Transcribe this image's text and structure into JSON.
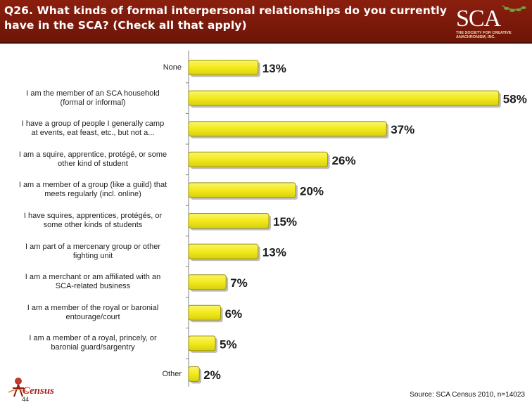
{
  "header": {
    "question_line1": "Q26. What kinds of formal interpersonal relationships do you currently",
    "question_line2": "have in the SCA? (Check all that apply)",
    "logo_text": "SCA",
    "logo_sub1": "THE SOCIETY FOR CREATIVE",
    "logo_sub2": "ANACHRONISM, INC."
  },
  "footer": {
    "page_number": "44",
    "source": "Source: SCA Census 2010, n=14023",
    "census_logo_text": "Census"
  },
  "colors": {
    "header_bg": "#7a1a0b",
    "bar_fill": "#f2ea1c",
    "bar_stroke": "#9c9310",
    "axis": "#808080"
  },
  "chart_data": {
    "type": "bar",
    "orientation": "horizontal",
    "title": "Q26. What kinds of formal interpersonal relationships do you currently have in the SCA? (Check all that apply)",
    "categories": [
      [
        "None"
      ],
      [
        "I am the member of an SCA household",
        "(formal or informal)"
      ],
      [
        "I have a group of people I generally camp",
        "at events, eat feast, etc., but not a..."
      ],
      [
        "I am a squire, apprentice, protégé, or some",
        "other kind of student"
      ],
      [
        "I am a member of a group (like a guild) that",
        "meets regularly (incl. online)"
      ],
      [
        "I have squires, apprentices, protégés, or",
        "some other kinds of students"
      ],
      [
        "I am part of a mercenary group or other",
        "fighting unit"
      ],
      [
        "I am a merchant or am affiliated with an",
        "SCA-related business"
      ],
      [
        "I am a member of the royal or baronial",
        "entourage/court"
      ],
      [
        "I am a member of a royal, princely, or",
        "baronial guard/sargentry"
      ],
      [
        "Other"
      ]
    ],
    "values": [
      13,
      58,
      37,
      26,
      20,
      15,
      13,
      7,
      6,
      5,
      2
    ],
    "value_labels": [
      "13%",
      "58%",
      "37%",
      "26%",
      "20%",
      "15%",
      "13%",
      "7%",
      "6%",
      "5%",
      "2%"
    ],
    "xlim": [
      0,
      60
    ],
    "grid": false,
    "legend": "none"
  }
}
